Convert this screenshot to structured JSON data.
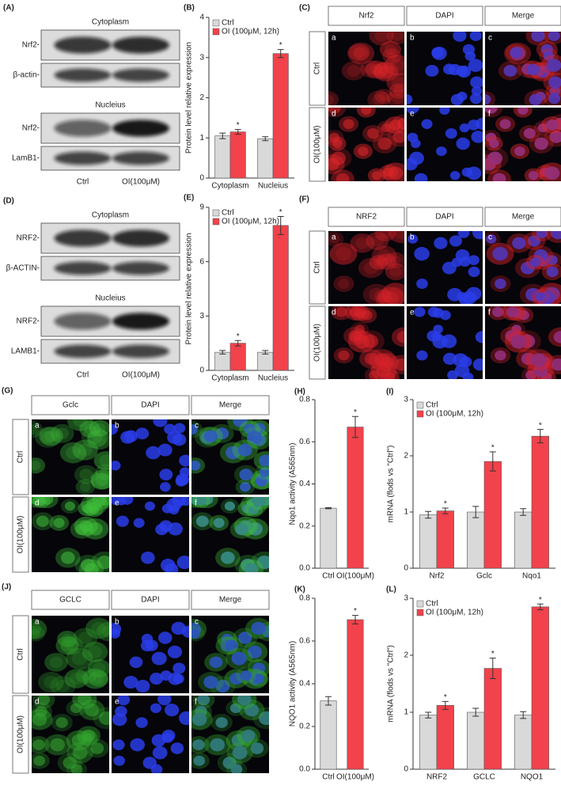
{
  "chart_data": [
    {
      "type": "bar",
      "panel": "(B)",
      "ylabel": "Protein level relative expression",
      "categories": [
        "Cytoplasm",
        "Nucleius"
      ],
      "ylim": [
        0,
        4
      ],
      "yticks": [
        0,
        1,
        2,
        3,
        4
      ],
      "series": [
        {
          "name": "Ctrl",
          "color": "#d9d9d9",
          "values": [
            1.05,
            0.98
          ],
          "errors": [
            0.07,
            0.05
          ],
          "significance": [
            null,
            null
          ]
        },
        {
          "name": "OI (100μM, 12h)",
          "color": "#f2424b",
          "values": [
            1.15,
            3.1
          ],
          "errors": [
            0.06,
            0.1
          ],
          "significance": [
            "*",
            "*"
          ]
        }
      ]
    },
    {
      "type": "bar",
      "panel": "(E)",
      "ylabel": "Protein level relative expression",
      "categories": [
        "Cytoplasm",
        "Nucleius"
      ],
      "ylim": [
        0,
        9
      ],
      "yticks": [
        0,
        3,
        6,
        9
      ],
      "series": [
        {
          "name": "Ctrl",
          "color": "#d9d9d9",
          "values": [
            1.0,
            1.0
          ],
          "errors": [
            0.1,
            0.1
          ],
          "significance": [
            null,
            null
          ]
        },
        {
          "name": "OI (100μM, 12h)",
          "color": "#f2424b",
          "values": [
            1.5,
            8.0
          ],
          "errors": [
            0.15,
            0.5
          ],
          "significance": [
            "*",
            "*"
          ]
        }
      ]
    },
    {
      "type": "bar",
      "panel": "(H)",
      "ylabel": "Nqo1 activity (A565nm)",
      "categories": [
        "Ctrl",
        "OI(100μM)"
      ],
      "ylim": [
        0,
        0.8
      ],
      "yticks": [
        {
          "value": 0,
          "label": "0.0"
        },
        0.2,
        0.4,
        0.6,
        0.8
      ],
      "colors": [
        "#d9d9d9",
        "#f2424b"
      ],
      "values": [
        0.285,
        0.67
      ],
      "errors": [
        0.003,
        0.05
      ],
      "significance": [
        null,
        "*"
      ]
    },
    {
      "type": "bar",
      "panel": "(I)",
      "ylabel": "mRNA (flods vs \"Ctrl\")",
      "categories": [
        "Nrf2",
        "Gclc",
        "Nqo1"
      ],
      "ylim": [
        0,
        3
      ],
      "yticks": [
        0,
        1,
        2,
        3
      ],
      "series": [
        {
          "name": "Ctrl",
          "color": "#d9d9d9",
          "values": [
            0.95,
            1.0,
            1.0
          ],
          "errors": [
            0.06,
            0.1,
            0.06
          ],
          "significance": [
            null,
            null,
            null
          ]
        },
        {
          "name": "OI (100μM, 12h)",
          "color": "#f2424b",
          "values": [
            1.02,
            1.9,
            2.35
          ],
          "errors": [
            0.05,
            0.17,
            0.12
          ],
          "significance": [
            "*",
            "*",
            "*"
          ]
        }
      ]
    },
    {
      "type": "bar",
      "panel": "(K)",
      "ylabel": "NQO1 activity (A565nm)",
      "categories": [
        "Ctrl",
        "OI(100μM)"
      ],
      "ylim": [
        0,
        0.8
      ],
      "yticks": [
        {
          "value": 0,
          "label": "0.0"
        },
        0.2,
        0.4,
        0.6,
        0.8
      ],
      "colors": [
        "#d9d9d9",
        "#f2424b"
      ],
      "values": [
        0.32,
        0.7
      ],
      "errors": [
        0.02,
        0.02
      ],
      "significance": [
        null,
        "*"
      ]
    },
    {
      "type": "bar",
      "panel": "(L)",
      "ylabel": "mRNA (flods vs \"Ctrl\")",
      "categories": [
        "NRF2",
        "GCLC",
        "NQO1"
      ],
      "ylim": [
        0,
        3
      ],
      "yticks": [
        0,
        1,
        2,
        3
      ],
      "series": [
        {
          "name": "Ctrl",
          "color": "#d9d9d9",
          "values": [
            0.95,
            1.0,
            0.95
          ],
          "errors": [
            0.05,
            0.07,
            0.06
          ],
          "significance": [
            null,
            null,
            null
          ]
        },
        {
          "name": "OI (100μM, 12h)",
          "color": "#f2424b",
          "values": [
            1.12,
            1.77,
            2.85
          ],
          "errors": [
            0.07,
            0.18,
            0.05
          ],
          "significance": [
            "*",
            "*",
            "*"
          ]
        }
      ]
    }
  ],
  "blots": [
    {
      "panel": "(A)",
      "sections": [
        {
          "title": "Cytoplasm",
          "rows": [
            "Nrf2-",
            "β-actin-"
          ]
        },
        {
          "title": "Nucleius",
          "rows": [
            "Nrf2-",
            "LamB1-"
          ]
        }
      ],
      "lanes": [
        "Ctrl",
        "OI(100μM)"
      ]
    },
    {
      "panel": "(D)",
      "sections": [
        {
          "title": "Cytoplasm",
          "rows": [
            "NRF2-",
            "β-ACTIN-"
          ]
        },
        {
          "title": "Nucleius",
          "rows": [
            "NRF2-",
            "LAMB1-"
          ]
        }
      ],
      "lanes": [
        "Ctrl",
        "OI(100μM)"
      ]
    }
  ],
  "micrographs": [
    {
      "panel": "(C)",
      "columns": [
        "Nrf2",
        "DAPI",
        "Merge"
      ],
      "rows": [
        "Ctrl",
        "OI(100μM)"
      ],
      "tiles": [
        "a",
        "b",
        "c",
        "d",
        "e",
        "f"
      ],
      "colors": [
        "#e0262a",
        "#2a3de8"
      ]
    },
    {
      "panel": "(F)",
      "columns": [
        "NRF2",
        "DAPI",
        "Merge"
      ],
      "rows": [
        "Ctrl",
        "OI(100μM)"
      ],
      "tiles": [
        "a",
        "b",
        "c",
        "d",
        "e",
        "f"
      ],
      "colors": [
        "#d8232a",
        "#2a3de8"
      ]
    },
    {
      "panel": "(G)",
      "columns": [
        "Gclc",
        "DAPI",
        "Merge"
      ],
      "rows": [
        "Ctrl",
        "OI(100μM)"
      ],
      "tiles": [
        "a",
        "b",
        "c",
        "d",
        "e",
        "f"
      ],
      "colors": [
        "#3fbf3a",
        "#2a3de8"
      ]
    },
    {
      "panel": "(J)",
      "columns": [
        "GCLC",
        "DAPI",
        "Merge"
      ],
      "rows": [
        "Ctrl",
        "OI(100μM)"
      ],
      "tiles": [
        "a",
        "b",
        "c",
        "d",
        "e",
        "f"
      ],
      "colors": [
        "#34a52f",
        "#2a3de8"
      ]
    }
  ]
}
